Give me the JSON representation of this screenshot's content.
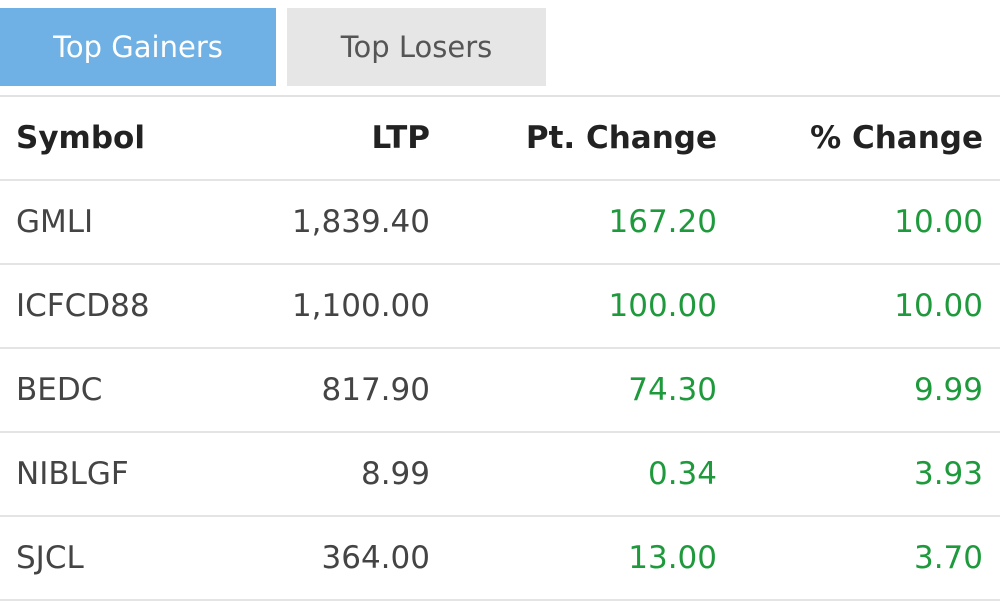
{
  "tabs": [
    {
      "label": "Top Gainers",
      "active": true
    },
    {
      "label": "Top Losers",
      "active": false
    }
  ],
  "colors": {
    "active_tab": "#6fb1e4",
    "inactive_tab": "#e6e6e6",
    "positive": "#1e9a3c"
  },
  "table": {
    "headers": [
      "Symbol",
      "LTP",
      "Pt. Change",
      "% Change"
    ],
    "rows": [
      [
        "GMLI",
        "1,839.40",
        "167.20",
        "10.00"
      ],
      [
        "ICFCD88",
        "1,100.00",
        "100.00",
        "10.00"
      ],
      [
        "BEDC",
        "817.90",
        "74.30",
        "9.99"
      ],
      [
        "NIBLGF",
        "8.99",
        "0.34",
        "3.93"
      ],
      [
        "SJCL",
        "364.00",
        "13.00",
        "3.70"
      ]
    ]
  }
}
